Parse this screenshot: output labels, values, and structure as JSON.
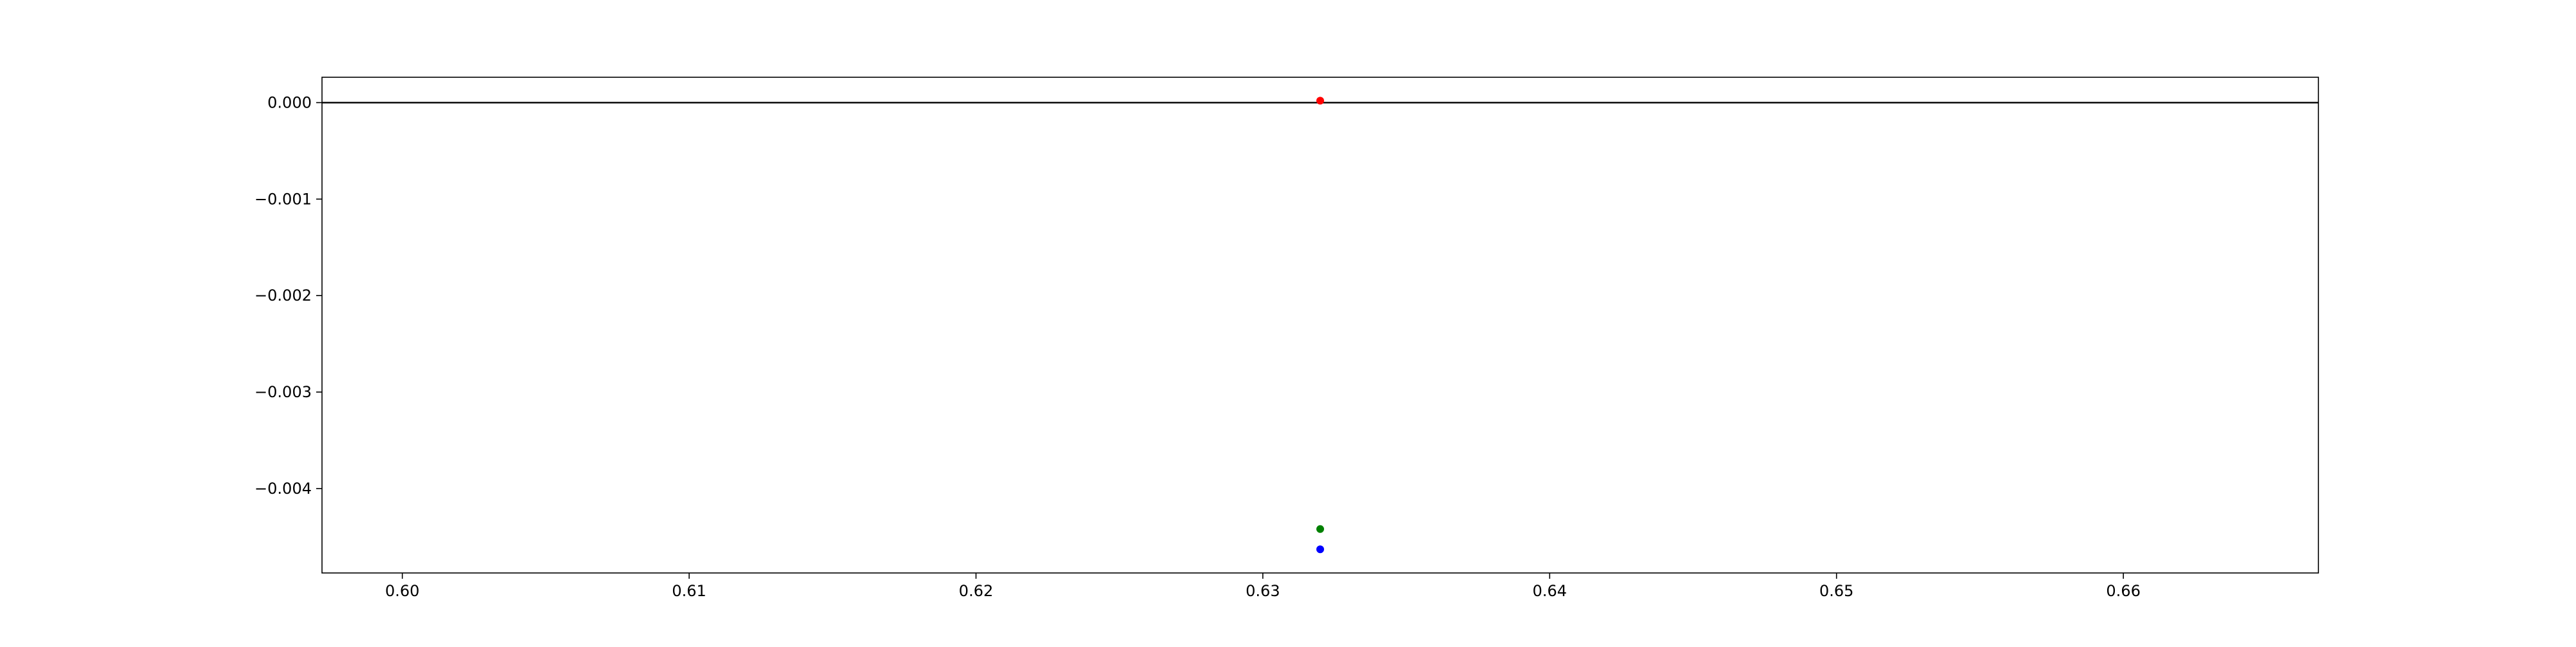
{
  "chart_data": {
    "type": "scatter",
    "title": "",
    "xlabel": "",
    "ylabel": "",
    "xlim": [
      0.5972,
      0.6668
    ],
    "ylim": [
      -0.004875,
      0.000263
    ],
    "grid": false,
    "xticks": [
      {
        "value": 0.6,
        "label": "0.60"
      },
      {
        "value": 0.61,
        "label": "0.61"
      },
      {
        "value": 0.62,
        "label": "0.62"
      },
      {
        "value": 0.63,
        "label": "0.63"
      },
      {
        "value": 0.64,
        "label": "0.64"
      },
      {
        "value": 0.65,
        "label": "0.65"
      },
      {
        "value": 0.66,
        "label": "0.66"
      }
    ],
    "yticks": [
      {
        "value": 0.0,
        "label": "0.000"
      },
      {
        "value": -0.001,
        "label": "−0.001"
      },
      {
        "value": -0.002,
        "label": "−0.002"
      },
      {
        "value": -0.003,
        "label": "−0.003"
      },
      {
        "value": -0.004,
        "label": "−0.004"
      }
    ],
    "hline": {
      "y": 0.0,
      "color": "#000000"
    },
    "series": [
      {
        "color": "#ff0000",
        "x": [
          0.632
        ],
        "y": [
          2e-05
        ]
      },
      {
        "color": "#008000",
        "x": [
          0.632
        ],
        "y": [
          -0.00442
        ]
      },
      {
        "color": "#0000ff",
        "x": [
          0.632
        ],
        "y": [
          -0.00463
        ]
      }
    ]
  }
}
